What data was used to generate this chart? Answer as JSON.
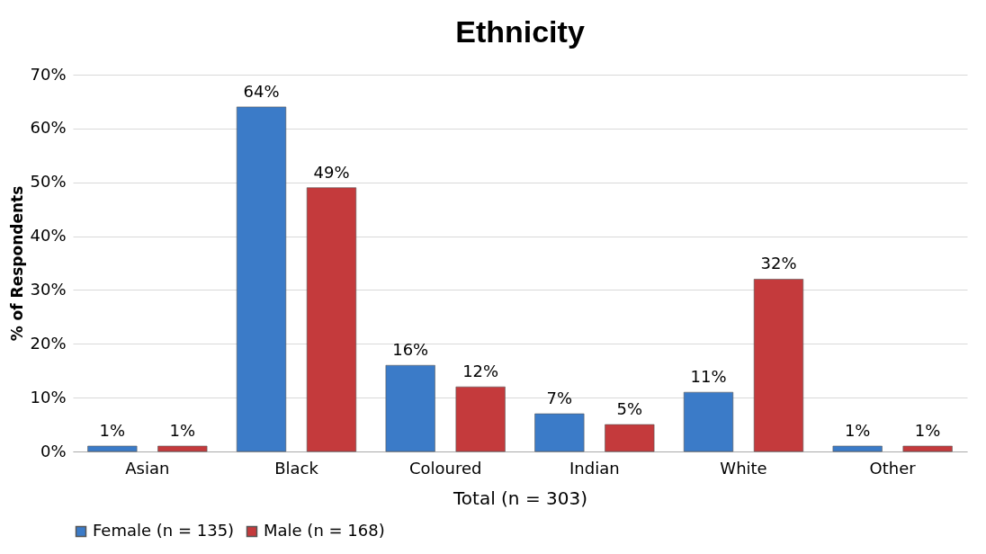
{
  "chart_data": {
    "type": "bar",
    "title": "Ethnicity",
    "xlabel": "Total (n = 303)",
    "ylabel": "% of Respondents",
    "categories": [
      "Asian",
      "Black",
      "Coloured",
      "Indian",
      "White",
      "Other"
    ],
    "series": [
      {
        "name": "Female (n = 135)",
        "color": "#3b7bc8",
        "values": [
          1,
          64,
          16,
          7,
          11,
          1
        ],
        "value_labels": [
          "1%",
          "64%",
          "16%",
          "7%",
          "11%",
          "1%"
        ]
      },
      {
        "name": "Male (n = 168)",
        "color": "#c43a3c",
        "values": [
          1,
          49,
          12,
          5,
          32,
          1
        ],
        "value_labels": [
          "1%",
          "49%",
          "12%",
          "5%",
          "32%",
          "1%"
        ]
      }
    ],
    "ylim": [
      0,
      70
    ],
    "yticks": [
      {
        "value": 0,
        "label": "0%"
      },
      {
        "value": 10,
        "label": "10%"
      },
      {
        "value": 20,
        "label": "20%"
      },
      {
        "value": 30,
        "label": "30%"
      },
      {
        "value": 40,
        "label": "40%"
      },
      {
        "value": 50,
        "label": "50%"
      },
      {
        "value": 60,
        "label": "60%"
      },
      {
        "value": 70,
        "label": "70%"
      }
    ],
    "grid": "y",
    "legend": "bottom"
  }
}
